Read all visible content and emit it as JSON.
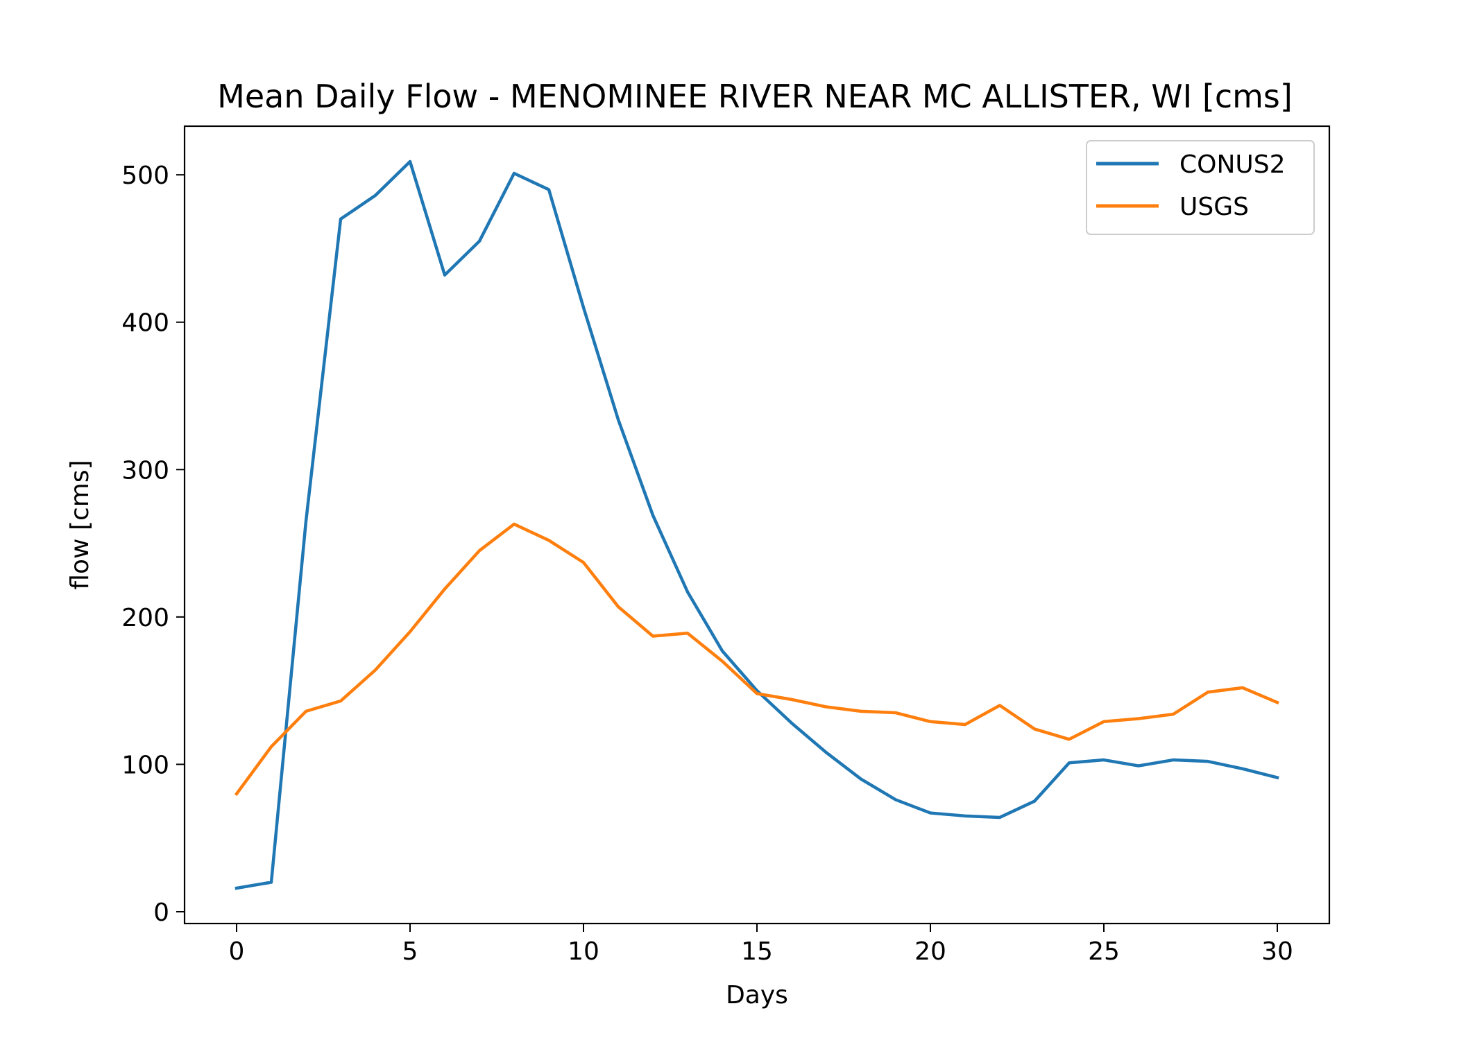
{
  "chart_data": {
    "type": "line",
    "title": "Mean Daily Flow - MENOMINEE RIVER NEAR MC ALLISTER, WI [cms]",
    "xlabel": "Days",
    "ylabel": "flow [cms]",
    "xlim": [
      -1.5,
      31.5
    ],
    "ylim": [
      -8,
      533
    ],
    "xticks": [
      0,
      5,
      10,
      15,
      20,
      25,
      30
    ],
    "yticks": [
      0,
      100,
      200,
      300,
      400,
      500
    ],
    "grid": false,
    "legend": "top-right",
    "x": [
      0,
      1,
      2,
      3,
      4,
      5,
      6,
      7,
      8,
      9,
      10,
      11,
      12,
      13,
      14,
      15,
      16,
      17,
      18,
      19,
      20,
      21,
      22,
      23,
      24,
      25,
      26,
      27,
      28,
      29,
      30
    ],
    "series": [
      {
        "name": "CONUS2",
        "color": "#1f77b4",
        "values": [
          16,
          20,
          265,
          470,
          486,
          509,
          432,
          455,
          501,
          490,
          410,
          334,
          269,
          217,
          177,
          150,
          128,
          108,
          90,
          76,
          67,
          65,
          64,
          75,
          101,
          103,
          99,
          103,
          102,
          97,
          91
        ]
      },
      {
        "name": "USGS",
        "color": "#ff7f0e",
        "values": [
          80,
          112,
          136,
          143,
          164,
          190,
          219,
          245,
          263,
          252,
          237,
          207,
          187,
          189,
          170,
          148,
          144,
          139,
          136,
          135,
          129,
          127,
          140,
          124,
          117,
          129,
          131,
          134,
          149,
          152,
          142
        ]
      }
    ]
  }
}
